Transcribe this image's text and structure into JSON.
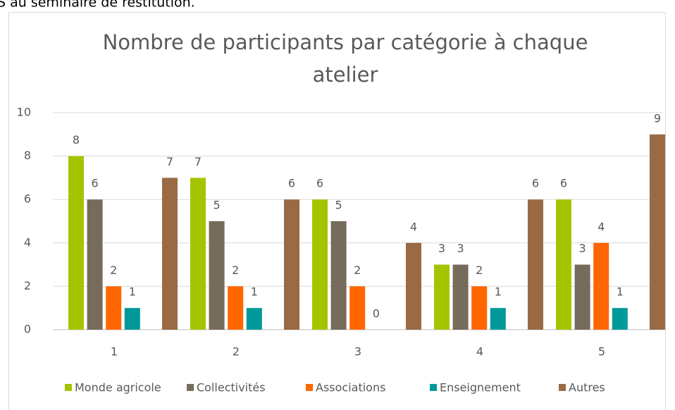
{
  "header_text": "S au séminaire de restitution.",
  "chart_data": {
    "type": "bar",
    "title": [
      "Nombre de participants par catégorie à chaque",
      "atelier"
    ],
    "categories": [
      "1",
      "2",
      "3",
      "4",
      "5"
    ],
    "series": [
      {
        "name": "Monde agricole",
        "color": "#a5c400",
        "values": [
          8,
          7,
          6,
          3,
          6
        ]
      },
      {
        "name": "Collectivités",
        "color": "#776b5b",
        "values": [
          6,
          5,
          5,
          3,
          3
        ]
      },
      {
        "name": "Associations",
        "color": "#ff6600",
        "values": [
          2,
          2,
          2,
          2,
          4
        ]
      },
      {
        "name": "Enseignement",
        "color": "#009999",
        "values": [
          1,
          1,
          0,
          1,
          1
        ]
      },
      {
        "name": "Autres",
        "color": "#996a44",
        "values": [
          7,
          6,
          4,
          6,
          9
        ]
      }
    ],
    "ylim": [
      0,
      10
    ],
    "yticks": [
      0,
      2,
      4,
      6,
      8,
      10
    ],
    "grid": true,
    "legend": "bottom",
    "data_labels": true
  }
}
